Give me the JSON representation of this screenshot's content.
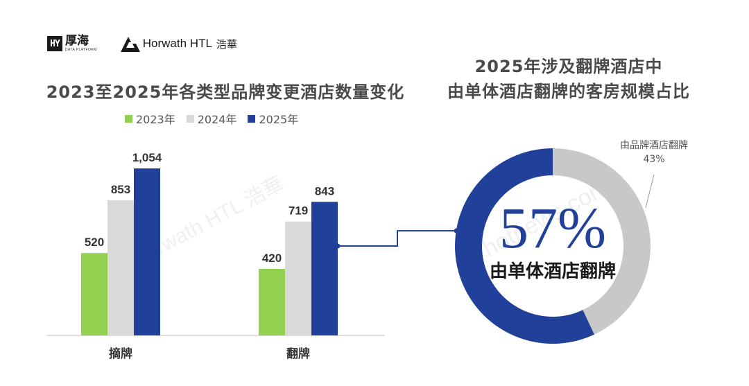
{
  "logos": {
    "haohai_name": "厚海",
    "haohai_sub": "DATA PLATFORM",
    "horwath_name": "Horwath HTL",
    "horwath_cn": "浩華"
  },
  "colors": {
    "y2023": "#92d050",
    "y2024": "#d9d9d9",
    "y2025": "#21409a",
    "ring_other": "#c8c8c8",
    "connector": "#21409a"
  },
  "watermark": {
    "text_left": "Horwath HTL 浩華",
    "text_right": "hotnews.com"
  },
  "chart_data": [
    {
      "type": "bar",
      "title": "2023至2025年各类型品牌变更酒店数量变化",
      "categories": [
        "摘牌",
        "翻牌"
      ],
      "series": [
        {
          "name": "2023年",
          "values": [
            520,
            420
          ],
          "labels": [
            "520",
            "420"
          ]
        },
        {
          "name": "2024年",
          "values": [
            853,
            719
          ],
          "labels": [
            "853",
            "719"
          ]
        },
        {
          "name": "2025年",
          "values": [
            1054,
            843
          ],
          "labels": [
            "1,054",
            "843"
          ]
        }
      ],
      "ylim": [
        0,
        1100
      ],
      "legend": "top",
      "grid": false
    },
    {
      "type": "pie",
      "variant": "donut",
      "title_lines": [
        "2025年涉及翻牌酒店中",
        "由单体酒店翻牌的客房规模占比"
      ],
      "slices": [
        {
          "label": "由单体酒店翻牌",
          "value": 57,
          "display": "57%"
        },
        {
          "label": "由品牌酒店翻牌",
          "value": 43,
          "display": "43%"
        }
      ]
    }
  ]
}
